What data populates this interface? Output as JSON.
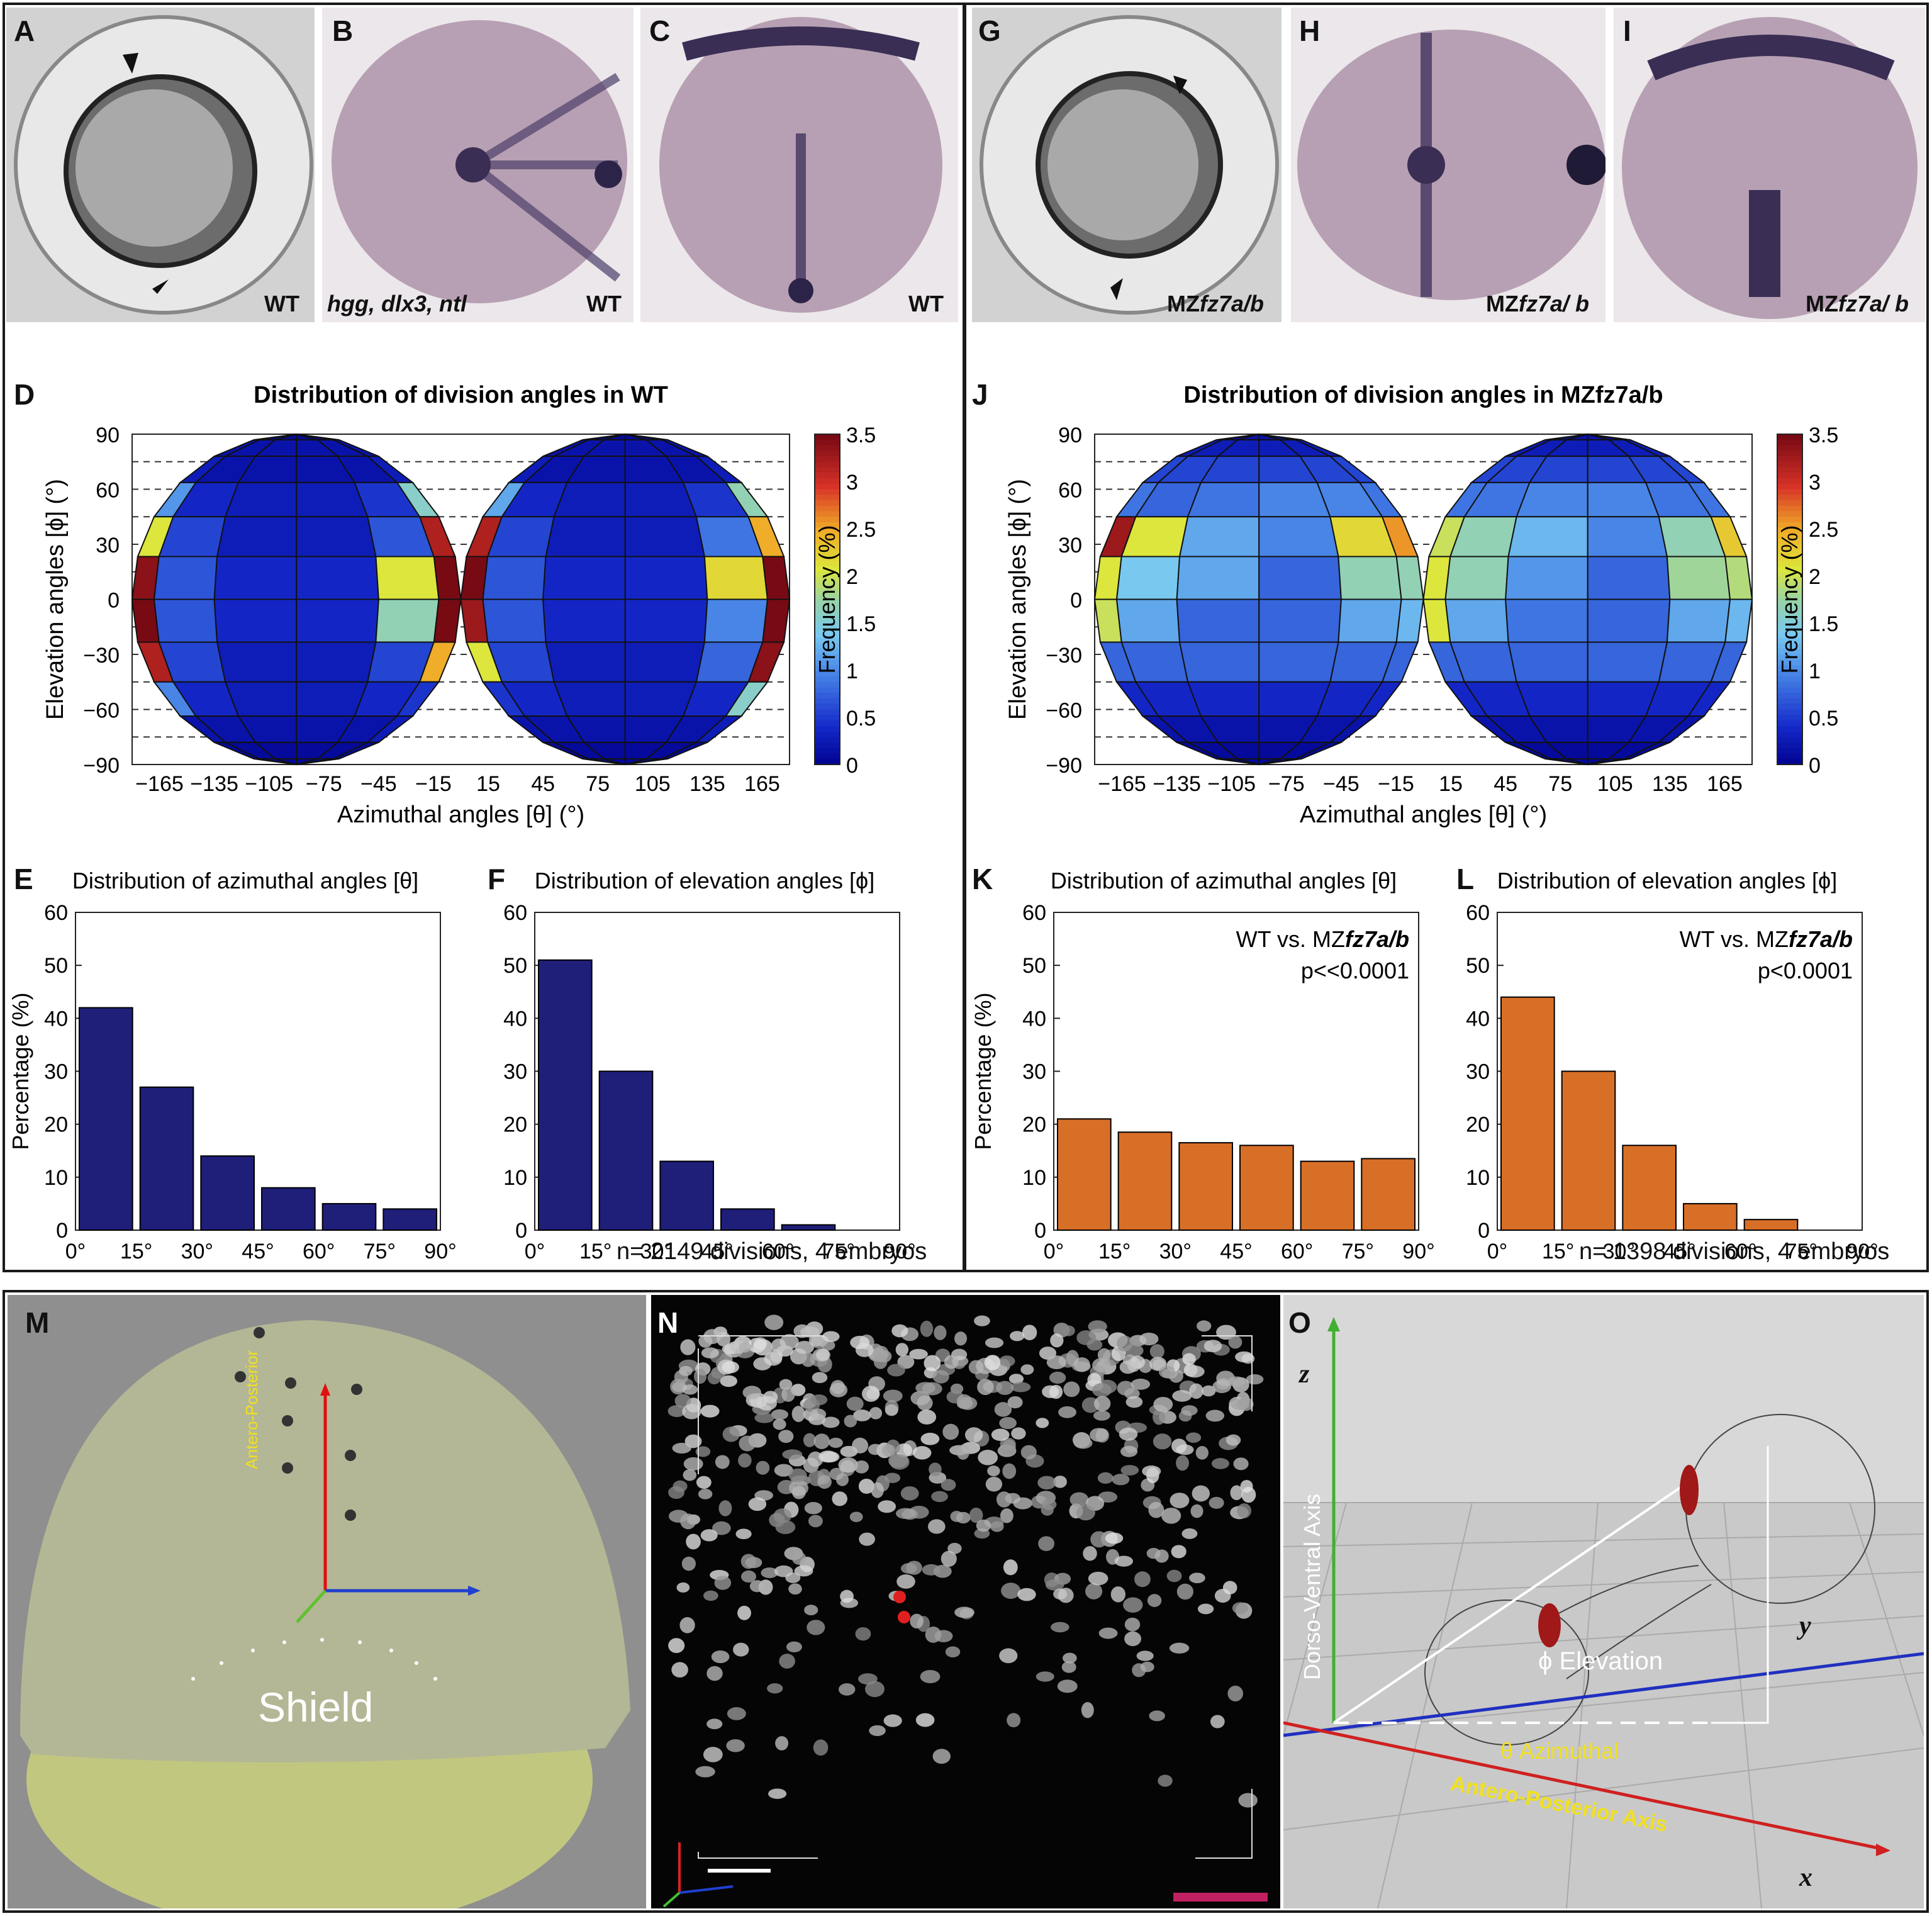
{
  "panel_letters": {
    "A": "A",
    "B": "B",
    "C": "C",
    "D": "D",
    "E": "E",
    "F": "F",
    "G": "G",
    "H": "H",
    "I": "I",
    "J": "J",
    "K": "K",
    "L": "L",
    "M": "M",
    "N": "N",
    "O": "O"
  },
  "photos": {
    "a_caption": "WT",
    "b_genes": "hgg, dlx3, ntl",
    "b_caption": "WT",
    "c_caption": "WT",
    "g_prefix": "MZ",
    "g_gene": "fz7a/b",
    "h_prefix": "MZ",
    "h_gene": "fz7a/ b",
    "i_prefix": "MZ",
    "i_gene": "fz7a/ b"
  },
  "footnotes": {
    "wt": "n= 2149 divisions, 4 embryos",
    "mz": "n= 1398 divisions, 4 embryos"
  },
  "panel_m": {
    "axis_label": "Antero-Posterior",
    "shield": "Shield"
  },
  "panel_o": {
    "z": "z",
    "y": "y",
    "x": "x",
    "dv_axis": "Dorso-Ventral Axis",
    "ap_axis": "Antero-Posterior Axis",
    "elevation": "ϕ Elevation",
    "azimuthal": "θ Azimuthal"
  },
  "colors": {
    "wt_bar": "#1f1f7a",
    "mz_bar": "#d86f27"
  },
  "chart_data": [
    {
      "id": "D",
      "type": "heatmap",
      "title": "Distribution of division angles in WT",
      "xlabel": "Azimuthal angles [θ] (°)",
      "ylabel": "Elevation angles [ϕ] (°)",
      "xticks": [
        "−165",
        "−135",
        "−105",
        "−75",
        "−45",
        "−15",
        "15",
        "45",
        "75",
        "105",
        "135",
        "165"
      ],
      "yticks": [
        "90",
        "60",
        "30",
        "0",
        "−30",
        "−60",
        "−90"
      ],
      "xlim": [
        -180,
        180
      ],
      "ylim": [
        -90,
        90
      ],
      "colorbar": {
        "label": "Frequency (%)",
        "ticks": [
          "3.5",
          "3",
          "2.5",
          "2",
          "1.5",
          "1",
          "0.5",
          "0"
        ],
        "range": [
          0,
          3.5
        ]
      },
      "values": [
        [
          0.1,
          0.1,
          0.1,
          0.1,
          0.1,
          0.1,
          0.1,
          0.1,
          0.1,
          0.1,
          0.1,
          0.1
        ],
        [
          0.2,
          0.2,
          0.2,
          0.2,
          0.2,
          0.2,
          0.2,
          0.2,
          0.2,
          0.2,
          0.2,
          0.2
        ],
        [
          0.3,
          0.2,
          0.2,
          0.2,
          0.2,
          0.3,
          0.3,
          0.2,
          0.2,
          0.2,
          0.2,
          0.3
        ],
        [
          1.1,
          0.4,
          0.3,
          0.3,
          0.5,
          1.6,
          1.2,
          0.4,
          0.3,
          0.3,
          0.5,
          1.7
        ],
        [
          2.1,
          0.6,
          0.3,
          0.3,
          0.7,
          3.2,
          3.2,
          0.6,
          0.3,
          0.3,
          0.9,
          2.5
        ],
        [
          3.4,
          0.7,
          0.4,
          0.4,
          2.1,
          3.5,
          3.5,
          0.7,
          0.4,
          0.4,
          2.2,
          3.5
        ],
        [
          3.5,
          0.7,
          0.4,
          0.4,
          1.7,
          3.5,
          3.3,
          0.7,
          0.4,
          0.4,
          1.0,
          3.5
        ],
        [
          3.2,
          0.6,
          0.3,
          0.3,
          0.6,
          2.5,
          2.1,
          0.6,
          0.3,
          0.3,
          0.8,
          3.4
        ],
        [
          1.0,
          0.4,
          0.3,
          0.3,
          0.4,
          0.5,
          0.5,
          0.4,
          0.3,
          0.3,
          0.4,
          1.6
        ],
        [
          0.2,
          0.2,
          0.2,
          0.2,
          0.2,
          0.3,
          0.2,
          0.2,
          0.2,
          0.2,
          0.2,
          0.3
        ],
        [
          0.1,
          0.1,
          0.1,
          0.1,
          0.1,
          0.1,
          0.1,
          0.1,
          0.1,
          0.1,
          0.1,
          0.1
        ],
        [
          0.1,
          0.1,
          0.1,
          0.1,
          0.1,
          0.1,
          0.1,
          0.1,
          0.1,
          0.1,
          0.1,
          0.1
        ]
      ]
    },
    {
      "id": "J",
      "type": "heatmap",
      "title": "Distribution of division angles in MZfz7a/b",
      "xlabel": "Azimuthal angles [θ] (°)",
      "ylabel": "Elevation angles [ϕ] (°)",
      "xticks": [
        "−165",
        "−135",
        "−105",
        "−75",
        "−45",
        "−15",
        "15",
        "45",
        "75",
        "105",
        "135",
        "165"
      ],
      "yticks": [
        "90",
        "60",
        "30",
        "0",
        "−30",
        "−60",
        "−90"
      ],
      "xlim": [
        -180,
        180
      ],
      "ylim": [
        -90,
        90
      ],
      "colorbar": {
        "label": "Frequency (%)",
        "ticks": [
          "3.5",
          "3",
          "2.5",
          "2",
          "1.5",
          "1",
          "0.5",
          "0"
        ],
        "range": [
          0,
          3.5
        ]
      },
      "values": [
        [
          0.2,
          0.2,
          0.2,
          0.2,
          0.2,
          0.2,
          0.2,
          0.2,
          0.2,
          0.2,
          0.2,
          0.2
        ],
        [
          0.3,
          0.3,
          0.3,
          0.3,
          0.3,
          0.3,
          0.3,
          0.3,
          0.3,
          0.3,
          0.3,
          0.3
        ],
        [
          0.6,
          0.6,
          0.6,
          0.6,
          0.6,
          0.6,
          0.6,
          0.6,
          0.6,
          0.6,
          0.6,
          0.6
        ],
        [
          0.9,
          0.8,
          0.9,
          1.0,
          1.0,
          0.9,
          0.9,
          0.9,
          1.0,
          1.0,
          0.9,
          0.9
        ],
        [
          3.3,
          2.1,
          1.2,
          1.0,
          2.2,
          2.6,
          2.0,
          1.7,
          1.3,
          1.0,
          1.7,
          2.3
        ],
        [
          2.1,
          1.4,
          1.2,
          0.8,
          1.7,
          1.7,
          2.1,
          1.7,
          1.1,
          0.8,
          1.8,
          1.9
        ],
        [
          2.0,
          1.2,
          0.8,
          0.8,
          1.2,
          1.3,
          2.1,
          1.2,
          0.9,
          0.8,
          1.2,
          1.3
        ],
        [
          0.8,
          0.8,
          0.8,
          0.8,
          0.8,
          0.8,
          0.8,
          0.8,
          0.8,
          0.8,
          0.8,
          0.8
        ],
        [
          0.4,
          0.4,
          0.4,
          0.4,
          0.4,
          0.4,
          0.4,
          0.4,
          0.4,
          0.4,
          0.4,
          0.4
        ],
        [
          0.2,
          0.2,
          0.2,
          0.2,
          0.2,
          0.2,
          0.2,
          0.2,
          0.2,
          0.2,
          0.2,
          0.2
        ],
        [
          0.1,
          0.1,
          0.1,
          0.1,
          0.1,
          0.1,
          0.1,
          0.1,
          0.1,
          0.1,
          0.1,
          0.1
        ],
        [
          0.1,
          0.1,
          0.1,
          0.1,
          0.1,
          0.1,
          0.1,
          0.1,
          0.1,
          0.1,
          0.1,
          0.1
        ]
      ]
    },
    {
      "id": "E",
      "type": "bar",
      "title": "Distribution of azimuthal angles [θ]",
      "ylabel": "Percentage (%)",
      "xlabel": "",
      "xticks": [
        "0°",
        "15°",
        "30°",
        "45°",
        "60°",
        "75°",
        "90°"
      ],
      "yticks": [
        "0",
        "10",
        "20",
        "30",
        "40",
        "50",
        "60"
      ],
      "ylim": [
        0,
        60
      ],
      "bin_edges": [
        0,
        15,
        30,
        45,
        60,
        75,
        90
      ],
      "values": [
        42,
        27,
        14,
        8,
        5,
        4
      ],
      "color": "#1f1f7a"
    },
    {
      "id": "F",
      "type": "bar",
      "title": "Distribution of elevation angles [ϕ]",
      "ylabel": "",
      "xlabel": "",
      "xticks": [
        "0°",
        "15°",
        "30°",
        "45°",
        "60°",
        "75°",
        "90°"
      ],
      "yticks": [
        "0",
        "10",
        "20",
        "30",
        "40",
        "50",
        "60"
      ],
      "ylim": [
        0,
        60
      ],
      "bin_edges": [
        0,
        15,
        30,
        45,
        60,
        75,
        90
      ],
      "values": [
        51,
        30,
        13,
        4,
        1,
        0
      ],
      "color": "#1f1f7a"
    },
    {
      "id": "K",
      "type": "bar",
      "title": "Distribution of azimuthal angles [θ]",
      "ylabel": "Percentage (%)",
      "xlabel": "",
      "xticks": [
        "0°",
        "15°",
        "30°",
        "45°",
        "60°",
        "75°",
        "90°"
      ],
      "yticks": [
        "0",
        "10",
        "20",
        "30",
        "40",
        "50",
        "60"
      ],
      "ylim": [
        0,
        60
      ],
      "bin_edges": [
        0,
        15,
        30,
        45,
        60,
        75,
        90
      ],
      "values": [
        21,
        18.5,
        16.5,
        16,
        13,
        13.5
      ],
      "annotation_prefix": "WT vs. MZ",
      "annotation_gene": "fz7a/b",
      "pvalue": "p<<0.0001",
      "color": "#d86f27"
    },
    {
      "id": "L",
      "type": "bar",
      "title": "Distribution of elevation angles [ϕ]",
      "ylabel": "",
      "xlabel": "",
      "xticks": [
        "0°",
        "15°",
        "30°",
        "45°",
        "60°",
        "75°",
        "90°"
      ],
      "yticks": [
        "0",
        "10",
        "20",
        "30",
        "40",
        "50",
        "60"
      ],
      "ylim": [
        0,
        60
      ],
      "bin_edges": [
        0,
        15,
        30,
        45,
        60,
        75,
        90
      ],
      "values": [
        44,
        30,
        16,
        5,
        2,
        0
      ],
      "annotation_prefix": "WT vs. MZ",
      "annotation_gene": "fz7a/b",
      "pvalue": "p<0.0001",
      "color": "#d86f27"
    }
  ]
}
